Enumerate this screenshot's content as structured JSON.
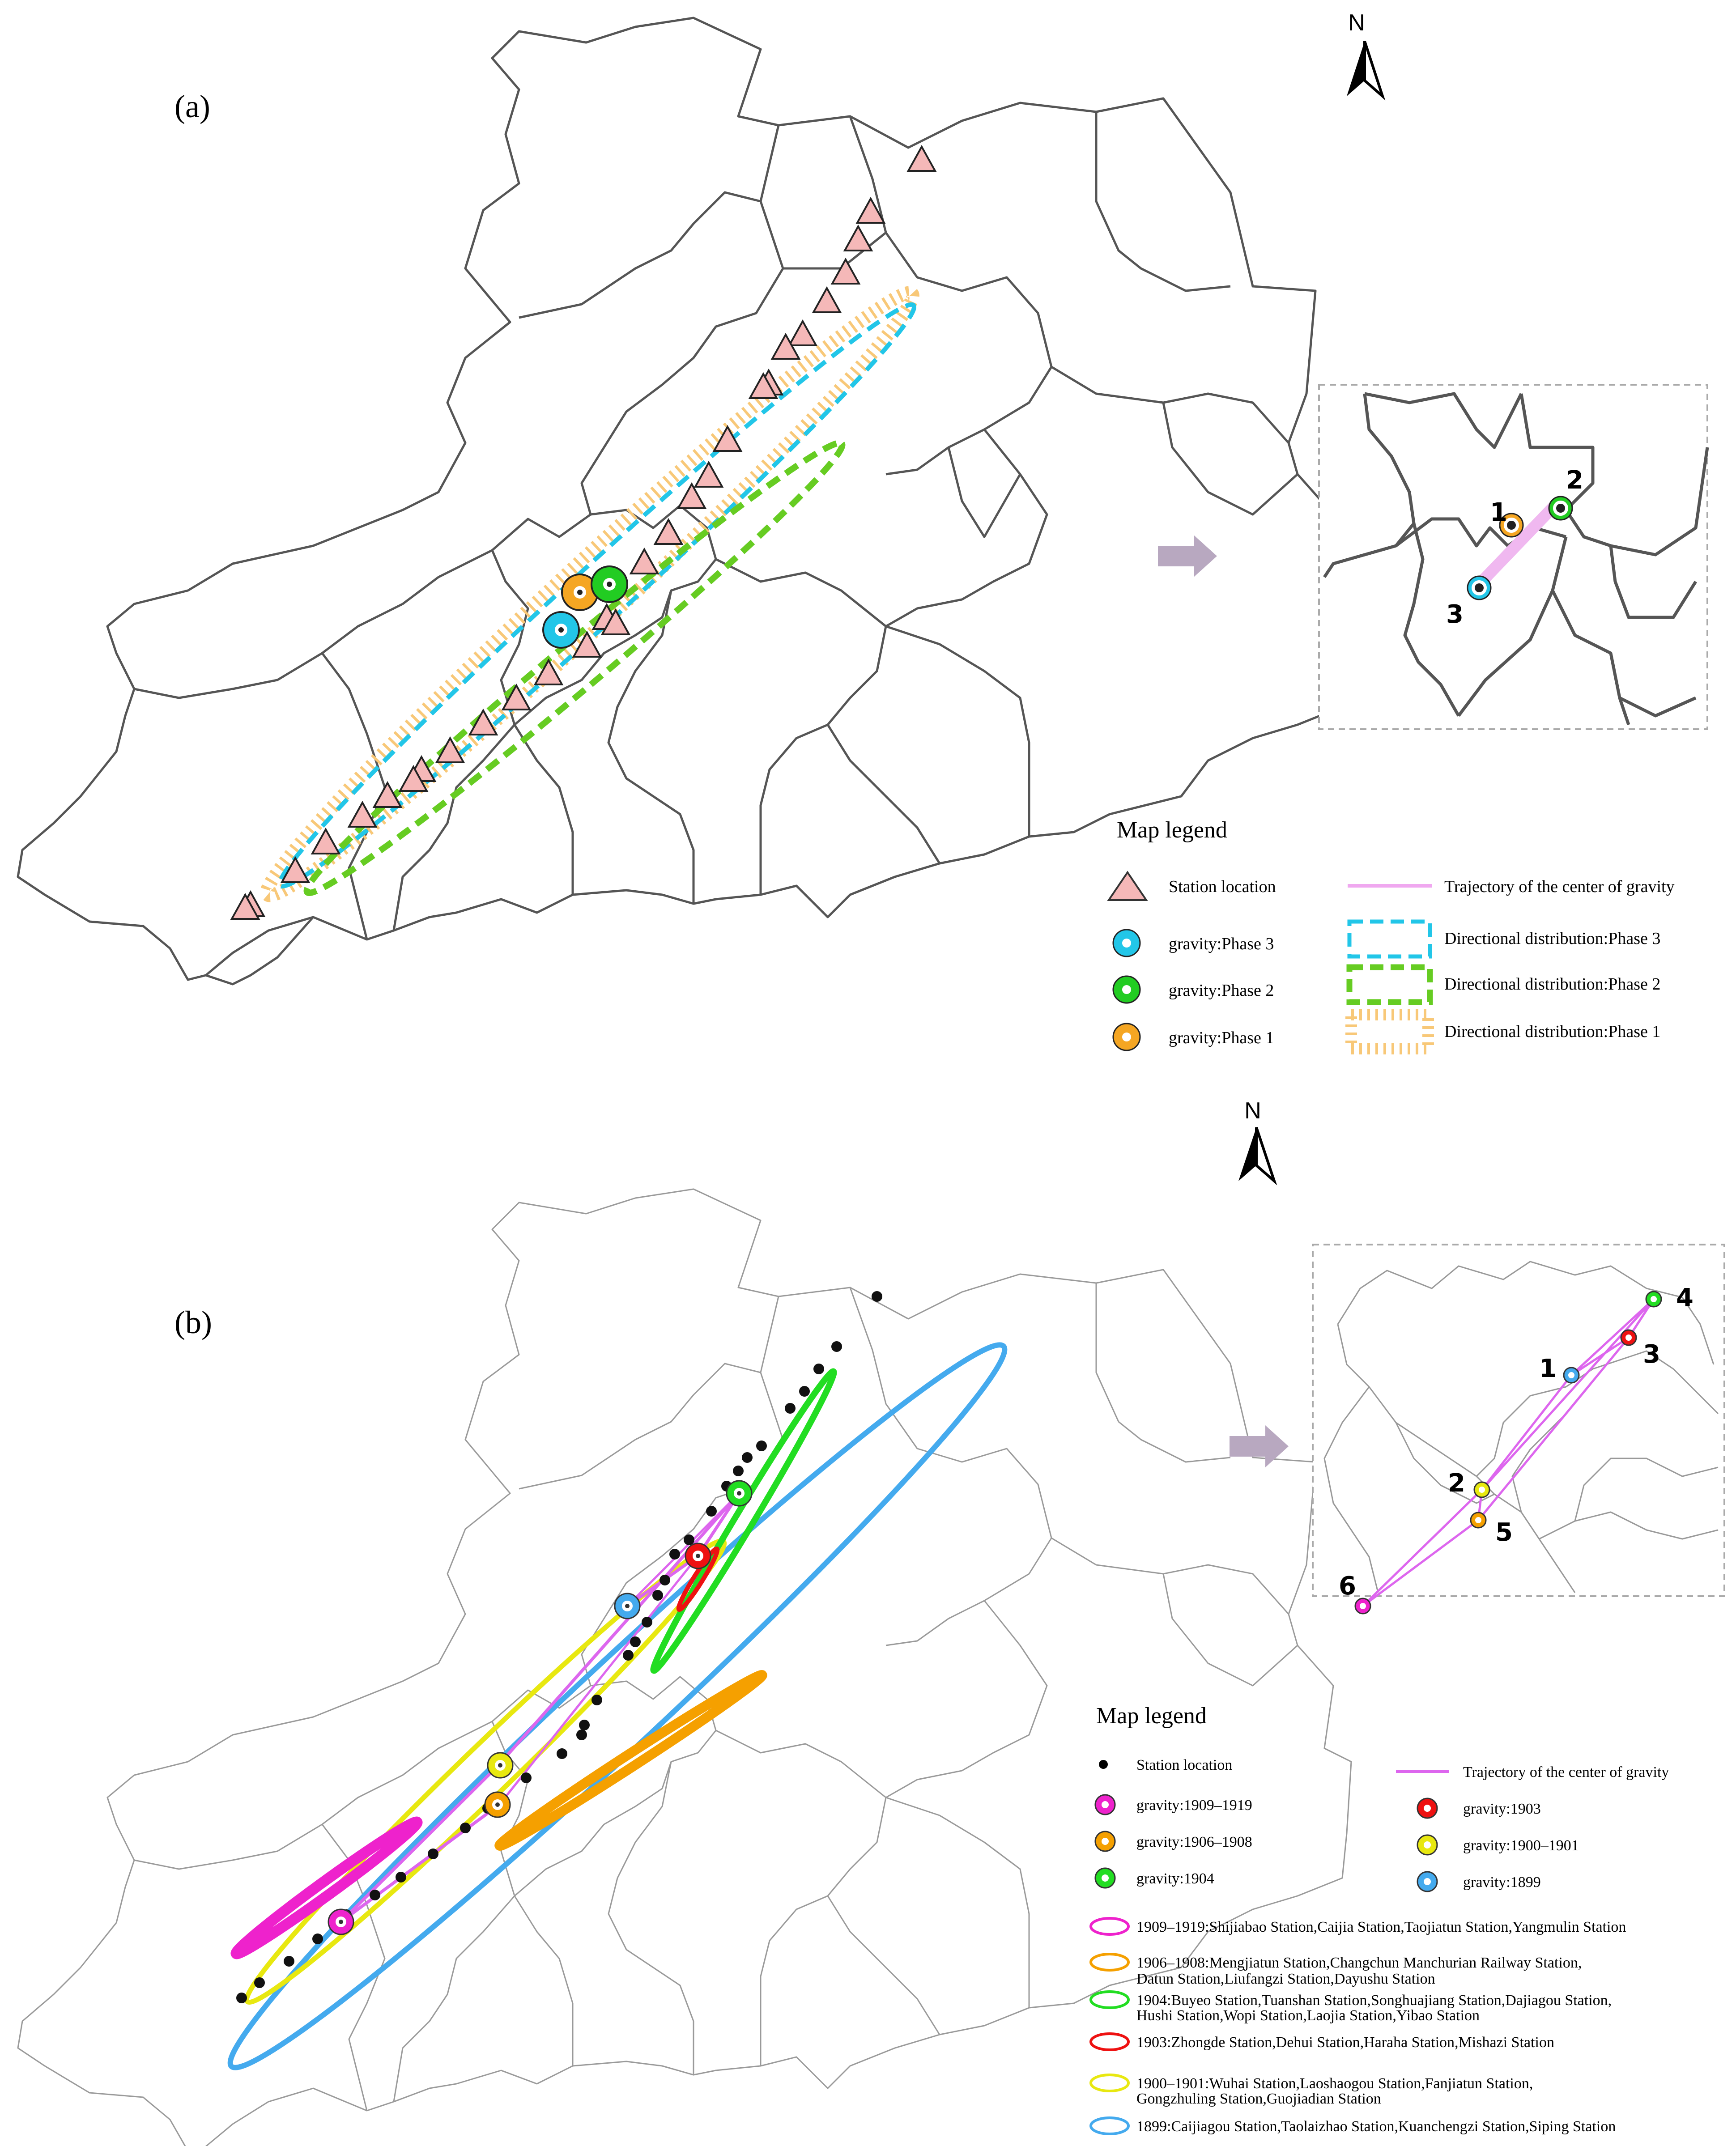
{
  "panel_a": {
    "label": "(a)",
    "north": "N",
    "legend": {
      "title": "Map legend",
      "station": "Station location",
      "gravity_phase3": "gravity:Phase 3",
      "gravity_phase2": "gravity:Phase 2",
      "gravity_phase1": "gravity:Phase 1",
      "trajectory": "Trajectory of the center of gravity",
      "dir_phase3": "Directional distribution:Phase 3",
      "dir_phase2": "Directional distribution:Phase 2",
      "dir_phase1": "Directional distribution:Phase 1"
    },
    "inset": {
      "labels": [
        "1",
        "2",
        "3"
      ]
    },
    "colors": {
      "phase1": "#f5a623",
      "phase2": "#22cc22",
      "phase3": "#22c6e8",
      "trajectory": "#f0a8f0",
      "station": "#f5b8b8"
    }
  },
  "panel_b": {
    "label": "(b)",
    "north": "N",
    "legend": {
      "title": "Map legend",
      "station": "Station location",
      "trajectory": "Trajectory of the center of gravity",
      "g1909": "gravity:1909–1919",
      "g1906": "gravity:1906–1908",
      "g1904": "gravity:1904",
      "g1903": "gravity:1903",
      "g1900": "gravity:1900–1901",
      "g1899": "gravity:1899",
      "e1909": "1909–1919:Shijiabao Station,Caijia Station,Taojiatun Station,Yangmulin Station",
      "e1906_l1": "1906–1908:Mengjiatun Station,Changchun Manchurian Railway Station,",
      "e1906_l2": "Datun Station,Liufangzi Station,Dayushu Station",
      "e1904_l1": "1904:Buyeo Station,Tuanshan Station,Songhuajiang Station,Dajiagou Station,",
      "e1904_l2": "Hushi Station,Wopi Station,Laojia Station,Yibao Station",
      "e1903": "1903:Zhongde Station,Dehui Station,Haraha Station,Mishazi Station",
      "e1900_l1": "1900–1901:Wuhai Station,Laoshaogou Station,Fanjiatun Station,",
      "e1900_l2": "Gongzhuling Station,Guojiadian Station",
      "e1899": "1899:Caijiagou Station,Taolaizhao Station,Kuanchengzi Station,Siping Station"
    },
    "inset": {
      "labels": [
        "1",
        "2",
        "3",
        "4",
        "5",
        "6"
      ]
    },
    "colors": {
      "p1909": "#ee22cc",
      "p1906": "#f5a000",
      "p1904": "#22dd22",
      "p1903": "#ee1111",
      "p1900": "#e8e810",
      "p1899": "#44aaee"
    }
  }
}
